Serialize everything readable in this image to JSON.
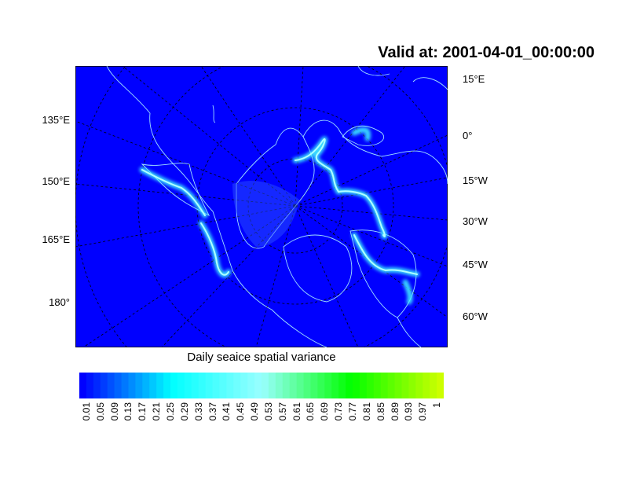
{
  "title": "Valid at: 2001-04-01_00:00:00",
  "map": {
    "projection": "polar stereographic",
    "field": "Daily seaice spatial variance",
    "background_color": "#0000ff",
    "coastline_color": "#a0e0ff",
    "ice_edge_color": "#40f0ff",
    "left_labels": [
      "135°E",
      "150°E",
      "165°E",
      "180°"
    ],
    "right_labels": [
      "15°E",
      "0°",
      "15°W",
      "30°W",
      "45°W",
      "60°W"
    ]
  },
  "colorbar": {
    "title": "Daily seaice spatial variance",
    "labels": [
      "0.01",
      "0.05",
      "0.09",
      "0.13",
      "0.17",
      "0.21",
      "0.25",
      "0.29",
      "0.33",
      "0.37",
      "0.41",
      "0.45",
      "0.49",
      "0.53",
      "0.57",
      "0.61",
      "0.65",
      "0.69",
      "0.73",
      "0.77",
      "0.81",
      "0.85",
      "0.89",
      "0.93",
      "0.97",
      "1"
    ],
    "palette": [
      "#0000ff",
      "#00ffff",
      "#99ffff",
      "#00ff00",
      "#ccff00"
    ]
  }
}
